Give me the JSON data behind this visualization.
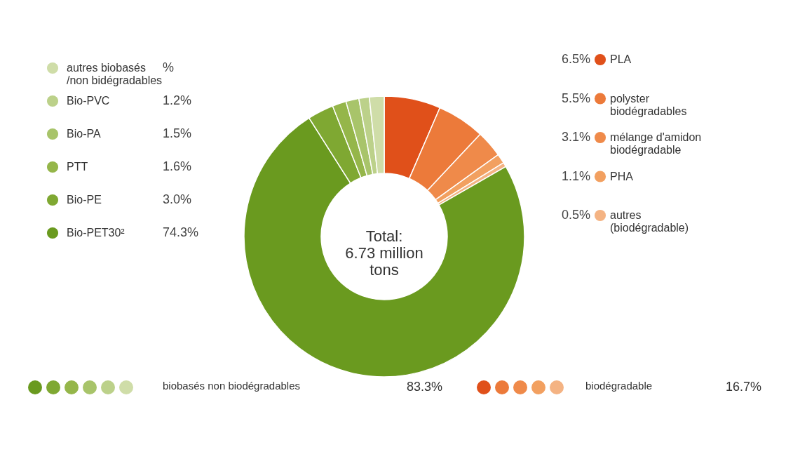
{
  "chart_data": {
    "type": "donut",
    "legend": "left",
    "categories": [
      "PLA",
      "polyster\nbiodégradables",
      "mélange d'amidon\nbiodégradable",
      "PHA",
      "autres\n(biodégradable)",
      "Bio-PET30²",
      "Bio-PE",
      "PTT",
      "Bio-PA",
      "Bio-PVC",
      "autres biobasés\n/non bidégradables"
    ],
    "values": [
      6.5,
      5.5,
      3.1,
      1.1,
      0.5,
      74.3,
      3.0,
      1.6,
      1.5,
      1.2,
      1.7
    ],
    "value_labels": [
      "6.5%",
      "5.5%",
      "3.1%",
      "1.1%",
      "0.5%",
      "74.3%",
      "3.0%",
      "1.6%",
      "1.5%",
      "1.2%",
      "%"
    ],
    "colors": [
      "#e0501a",
      "#ec7a3a",
      "#ef8a4a",
      "#f2a060",
      "#f4b383",
      "#6a9a1f",
      "#7fa832",
      "#95b64a",
      "#a8c46a",
      "#bcd18a",
      "#cfdda8"
    ],
    "annotations": [
      "Total:\n6.73 million\ntons",
      "biobasés non biodégradables",
      "83.3%",
      "biodégradable",
      "16.7%"
    ]
  }
}
